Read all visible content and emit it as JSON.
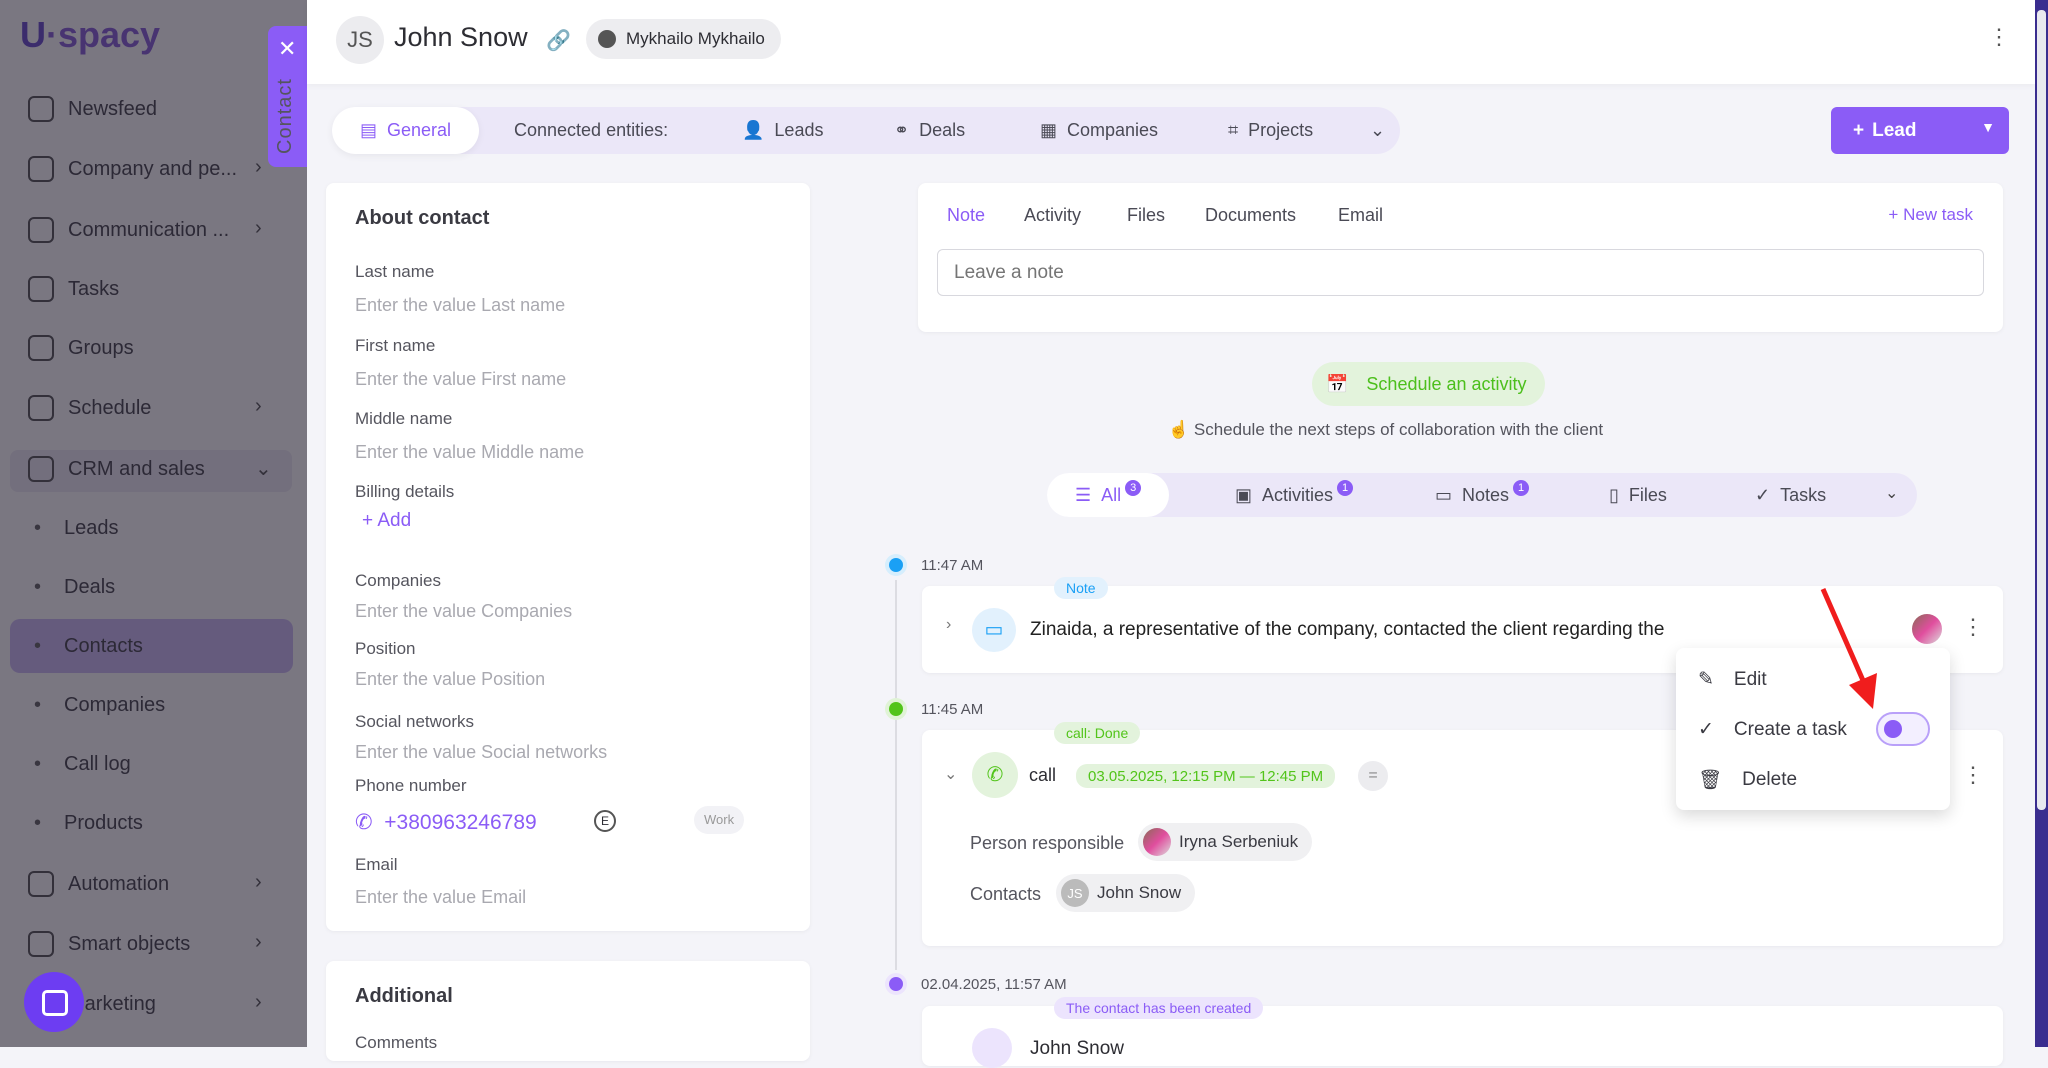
{
  "app": {
    "logo": "Uspacy",
    "accent": "#8b5cf6"
  },
  "sidebar": {
    "items": [
      {
        "label": "Newsfeed",
        "icon": "home-icon",
        "chevron": false
      },
      {
        "label": "Company and pe...",
        "icon": "building-icon",
        "chevron": true
      },
      {
        "label": "Communication ...",
        "icon": "chat-icon",
        "chevron": true
      },
      {
        "label": "Tasks",
        "icon": "check-circle-icon",
        "chevron": false
      },
      {
        "label": "Groups",
        "icon": "users-icon",
        "chevron": false
      },
      {
        "label": "Schedule",
        "icon": "calendar-icon",
        "chevron": true
      },
      {
        "label": "CRM and sales",
        "icon": "crm-icon",
        "chevron": true
      }
    ],
    "crm_sub": [
      "Leads",
      "Deals",
      "Contacts",
      "Companies",
      "Call log",
      "Products"
    ],
    "selected": "Contacts",
    "bottom": [
      {
        "label": "Automation",
        "icon": "bolt-icon"
      },
      {
        "label": "Smart objects",
        "icon": "smart-objects-icon"
      },
      {
        "label": "Marketing",
        "icon": "marketing-icon"
      }
    ]
  },
  "contact_tab": {
    "label": "Contact"
  },
  "header": {
    "initials": "JS",
    "name": "John Snow",
    "owner": "Mykhailo Mykhailo"
  },
  "tabs": {
    "general": "General",
    "connected": "Connected entities:",
    "items": [
      "Leads",
      "Deals",
      "Companies",
      "Projects"
    ]
  },
  "lead_button": "Lead",
  "about": {
    "title": "About contact",
    "fields": [
      {
        "label": "Last name",
        "placeholder": "Enter the value Last name"
      },
      {
        "label": "First name",
        "placeholder": "Enter the value First name"
      },
      {
        "label": "Middle name",
        "placeholder": "Enter the value Middle name"
      }
    ],
    "billing_label": "Billing details",
    "add": "Add",
    "fields2": [
      {
        "label": "Companies",
        "placeholder": "Enter the value Companies"
      },
      {
        "label": "Position",
        "placeholder": "Enter the value Position"
      },
      {
        "label": "Social networks",
        "placeholder": "Enter the value Social networks"
      }
    ],
    "phone_label": "Phone number",
    "phone": "+380963246789",
    "phone_type": "Work",
    "email_label": "Email",
    "email_placeholder": "Enter the value Email"
  },
  "additional": {
    "title": "Additional",
    "comments": "Comments"
  },
  "note_box": {
    "tabs": [
      "Note",
      "Activity",
      "Files",
      "Documents",
      "Email"
    ],
    "new_task": "New task",
    "placeholder": "Leave a note"
  },
  "schedule": {
    "button": "Schedule an activity",
    "hint": "Schedule the next steps of collaboration with the client"
  },
  "filters": [
    {
      "label": "All",
      "count": "3"
    },
    {
      "label": "Activities",
      "count": "1"
    },
    {
      "label": "Notes",
      "count": "1"
    },
    {
      "label": "Files"
    },
    {
      "label": "Tasks"
    }
  ],
  "timeline": [
    {
      "time": "11:47 AM",
      "tag": "Note",
      "text": "Zinaida, a representative of the company, contacted the client regarding the"
    },
    {
      "time": "11:45 AM",
      "tag": "call: Done",
      "title": "call",
      "when": "03.05.2025, 12:15 PM — 12:45 PM",
      "responsible_label": "Person responsible",
      "responsible": "Iryna Serbeniuk",
      "contacts_label": "Contacts",
      "contact_initials": "JS",
      "contact": "John Snow"
    },
    {
      "time": "02.04.2025, 11:57 AM",
      "tag": "The contact has been created",
      "text": "John Snow"
    }
  ],
  "context_menu": [
    "Edit",
    "Create a task",
    "Delete"
  ]
}
